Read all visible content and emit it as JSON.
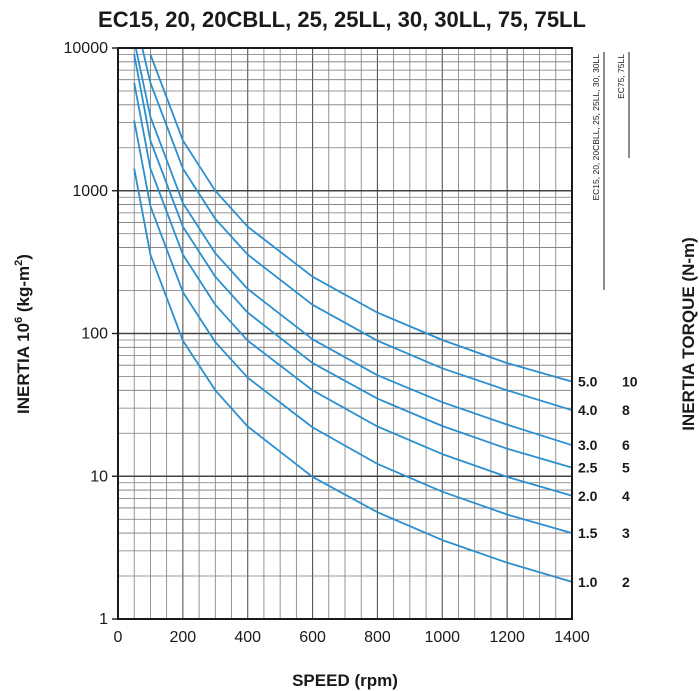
{
  "chart_data": {
    "type": "line",
    "title": "EC15, 20, 20CBLL, 25, 25LL, 30, 30LL, 75, 75LL",
    "xlabel": "SPEED (rpm)",
    "ylabel": "INERTIA 10",
    "ylabel_sup": "6",
    "ylabel_unit": " (kg-m",
    "ylabel_unit_sup": "2",
    "ylabel_close": ")",
    "y2label": "INERTIA TORQUE (N-m)",
    "xlim": [
      0,
      1400
    ],
    "ylim": [
      1,
      10000
    ],
    "yscale": "log",
    "grid": true,
    "line_color": "#2b8fd0",
    "x_ticks": [
      "0",
      "200",
      "400",
      "600",
      "800",
      "1000",
      "1200",
      "1400"
    ],
    "y_ticks": [
      "1",
      "10",
      "100",
      "1000",
      "10000"
    ],
    "model_groups": [
      {
        "label": "EC15, 20, 20CBLL, 25, 25LL, 30, 30LL",
        "column": "5.0 ... 1.0"
      },
      {
        "label": "EC75, 75LL",
        "column": "10 ... 2"
      }
    ],
    "series": [
      {
        "label_a": "5.0",
        "label_b": "10",
        "k_factor": 10,
        "x": [
          100,
          200,
          300,
          400,
          600,
          800,
          1000,
          1200,
          1400
        ],
        "y": [
          9000,
          2250,
          1000,
          560,
          250,
          140,
          90,
          62,
          46
        ]
      },
      {
        "label_a": "4.0",
        "label_b": "8",
        "k_factor": 8,
        "x": [
          75,
          100,
          200,
          300,
          400,
          600,
          800,
          1000,
          1200,
          1400
        ],
        "y": [
          10000,
          5700,
          1430,
          635,
          357,
          159,
          89,
          57,
          40,
          29
        ]
      },
      {
        "label_a": "3.0",
        "label_b": "6",
        "k_factor": 6,
        "x": [
          55,
          100,
          200,
          300,
          400,
          600,
          800,
          1000,
          1200,
          1400
        ],
        "y": [
          10000,
          3300,
          820,
          365,
          205,
          91,
          51,
          33,
          23,
          16.5
        ]
      },
      {
        "label_a": "2.5",
        "label_b": "5",
        "k_factor": 5,
        "x": [
          50,
          100,
          200,
          300,
          400,
          600,
          800,
          1000,
          1200,
          1400
        ],
        "y": [
          9000,
          2250,
          560,
          250,
          140,
          62,
          35,
          22.5,
          15.6,
          11.5
        ]
      },
      {
        "label_a": "2.0",
        "label_b": "4",
        "k_factor": 4,
        "x": [
          50,
          100,
          200,
          300,
          400,
          600,
          800,
          1000,
          1200,
          1400
        ],
        "y": [
          5700,
          1430,
          357,
          159,
          89,
          40,
          22.3,
          14.3,
          9.9,
          7.3
        ]
      },
      {
        "label_a": "1.5",
        "label_b": "3",
        "k_factor": 3,
        "x": [
          50,
          100,
          200,
          300,
          400,
          600,
          800,
          1000,
          1200,
          1400
        ],
        "y": [
          3100,
          780,
          195,
          87,
          49,
          22,
          12.2,
          7.8,
          5.4,
          4.0
        ]
      },
      {
        "label_a": "1.0",
        "label_b": "2",
        "k_factor": 2,
        "x": [
          50,
          100,
          200,
          300,
          400,
          600,
          800,
          1000,
          1200,
          1400
        ],
        "y": [
          1430,
          357,
          89,
          40,
          22.3,
          9.9,
          5.6,
          3.57,
          2.48,
          1.82
        ]
      }
    ]
  }
}
